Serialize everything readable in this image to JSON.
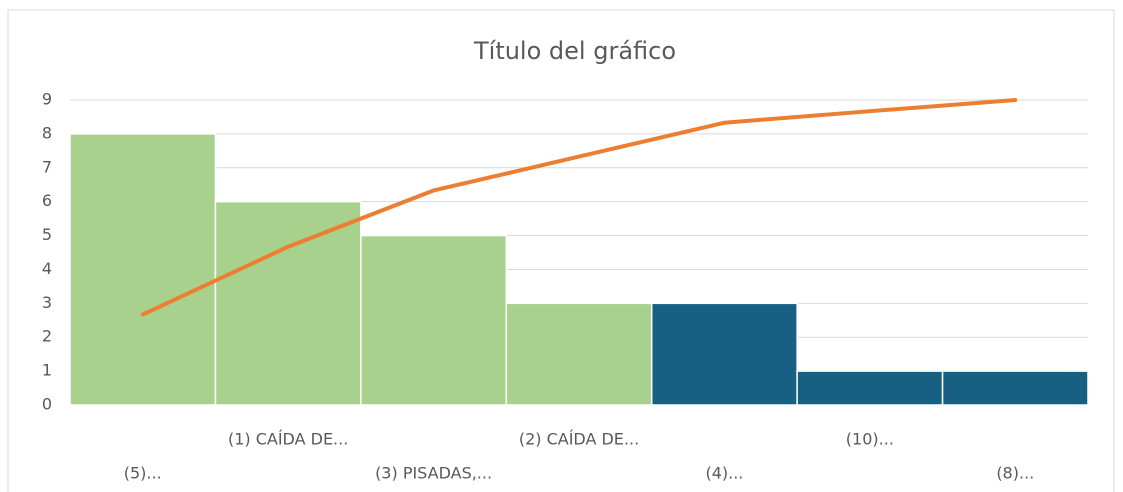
{
  "chart_data": {
    "type": "bar",
    "title": "Título del gráfico",
    "categories": [
      "(5)...",
      "(1) CAÍDA DE...",
      "(3) PISADAS,...",
      "(2) CAÍDA DE...",
      "(4)...",
      "(10)...",
      "(8)..."
    ],
    "values": [
      8,
      6,
      5,
      3,
      3,
      1,
      1
    ],
    "colors": [
      "#a9d18e",
      "#a9d18e",
      "#a9d18e",
      "#a9d18e",
      "#175f83",
      "#175f83",
      "#175f83"
    ],
    "line_values": [
      2.67,
      4.67,
      6.33,
      7.33,
      8.33,
      8.67,
      9
    ],
    "line_color": "#ed7d31",
    "ylim": [
      0,
      9
    ],
    "yticks": [
      0,
      1,
      2,
      3,
      4,
      5,
      6,
      7,
      8,
      9
    ],
    "grid": true
  }
}
